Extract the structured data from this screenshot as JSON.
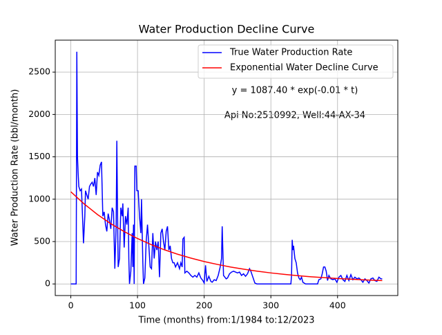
{
  "chart_data": {
    "type": "line",
    "title": "Water Production Decline Curve",
    "xlabel": "Time (months) from:1/1984 to:12/2023",
    "ylabel": "Water Production Rate (bbl/month)",
    "annotations": [
      "y = 1087.40 * exp(-0.01 * t)",
      "Api No:2510992, Well:44-AX-34"
    ],
    "xlim": [
      -23.35,
      490.35
    ],
    "ylim": [
      -137,
      2877
    ],
    "xticks": [
      0,
      100,
      200,
      300,
      400
    ],
    "yticks": [
      0,
      500,
      1000,
      1500,
      2000,
      2500
    ],
    "grid": true,
    "legend": "upper right",
    "series": [
      {
        "name": "True Water Production Rate",
        "color": "#0000ff",
        "x": [
          0,
          8,
          9,
          10,
          11,
          12,
          14,
          16,
          18,
          19,
          21,
          22,
          24,
          26,
          28,
          30,
          32,
          34,
          36,
          38,
          40,
          42,
          44,
          46,
          48,
          50,
          52,
          54,
          56,
          58,
          60,
          62,
          64,
          66,
          68,
          69,
          70,
          71,
          73,
          75,
          77,
          78,
          80,
          82,
          84,
          86,
          87,
          88,
          90,
          92,
          93,
          94,
          95,
          96,
          98,
          99,
          101,
          103,
          105,
          106,
          108,
          109,
          111,
          113,
          115,
          117,
          119,
          121,
          123,
          125,
          127,
          129,
          131,
          133,
          135,
          137,
          139,
          141,
          143,
          145,
          147,
          149,
          151,
          153,
          155,
          157,
          160,
          163,
          165,
          167,
          168,
          170,
          171,
          174,
          177,
          180,
          183,
          186,
          189,
          192,
          195,
          198,
          200,
          202,
          204,
          207,
          210,
          212,
          215,
          218,
          221,
          224,
          226,
          227,
          229,
          231,
          233,
          235,
          238,
          241,
          244,
          247,
          250,
          253,
          256,
          259,
          262,
          265,
          268,
          270,
          273,
          276,
          279,
          300,
          320,
          330,
          331,
          332,
          333,
          334,
          336,
          338,
          340,
          342,
          344,
          346,
          348,
          352,
          370,
          372,
          375,
          377,
          379,
          381,
          383,
          385,
          387,
          390,
          393,
          396,
          399,
          402,
          405,
          408,
          411,
          414,
          417,
          420,
          423,
          426,
          429,
          432,
          435,
          438,
          441,
          444,
          447,
          450,
          453,
          456,
          459,
          462,
          465,
          467
        ],
        "values": [
          0,
          0,
          2740,
          1500,
          1300,
          1150,
          1100,
          1120,
          700,
          480,
          800,
          1100,
          1050,
          1000,
          1150,
          1180,
          1200,
          1150,
          1250,
          1050,
          1320,
          1280,
          1400,
          1440,
          800,
          850,
          700,
          620,
          830,
          750,
          650,
          900,
          850,
          180,
          700,
          1690,
          900,
          200,
          300,
          900,
          800,
          950,
          430,
          800,
          700,
          900,
          300,
          0,
          150,
          600,
          200,
          700,
          0,
          1390,
          1390,
          1100,
          1100,
          800,
          600,
          1000,
          250,
          0,
          70,
          500,
          700,
          450,
          200,
          180,
          600,
          300,
          500,
          400,
          500,
          80,
          600,
          650,
          500,
          400,
          620,
          680,
          400,
          450,
          300,
          250,
          250,
          200,
          250,
          180,
          250,
          200,
          530,
          550,
          130,
          150,
          130,
          100,
          80,
          100,
          80,
          130,
          70,
          40,
          10,
          220,
          30,
          90,
          30,
          20,
          50,
          40,
          100,
          200,
          300,
          680,
          100,
          80,
          60,
          70,
          120,
          140,
          150,
          140,
          130,
          140,
          100,
          120,
          90,
          120,
          180,
          150,
          80,
          10,
          0,
          0,
          0,
          0,
          100,
          520,
          400,
          450,
          300,
          250,
          130,
          70,
          50,
          80,
          20,
          0,
          0,
          50,
          60,
          120,
          200,
          200,
          150,
          40,
          100,
          60,
          50,
          60,
          20,
          80,
          100,
          50,
          30,
          100,
          40,
          110,
          50,
          80,
          60,
          70,
          50,
          20,
          60,
          40,
          10,
          60,
          70,
          40,
          30,
          80,
          60,
          60
        ]
      },
      {
        "name": "Exponential Water Decline Curve",
        "color": "#ff0000",
        "x": [
          0,
          20,
          40,
          60,
          80,
          100,
          120,
          140,
          160,
          180,
          200,
          220,
          240,
          260,
          280,
          300,
          320,
          340,
          360,
          380,
          400,
          420,
          440,
          460,
          467
        ],
        "values": [
          1087.4,
          944,
          819,
          711,
          618,
          536,
          466,
          404,
          351,
          305,
          264,
          230,
          199,
          173,
          150,
          130,
          113,
          98,
          85,
          74,
          64,
          56,
          48,
          42,
          40
        ]
      }
    ]
  }
}
